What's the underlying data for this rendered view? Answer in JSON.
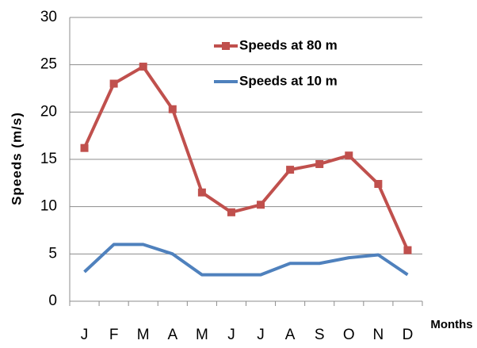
{
  "chart_data": {
    "type": "line",
    "y_label": "Speeds (m/s)",
    "x_label": "Months",
    "categories": [
      "J",
      "F",
      "M",
      "A",
      "M",
      "J",
      "J",
      "A",
      "S",
      "O",
      "N",
      "D"
    ],
    "series": [
      {
        "name": "Speeds at 80 m",
        "color": "#c0504d",
        "marker": "square",
        "values": [
          16.2,
          23,
          24.8,
          20.3,
          11.5,
          9.4,
          10.2,
          13.9,
          14.5,
          15.4,
          12.4,
          5.4
        ]
      },
      {
        "name": "Speeds at 10 m",
        "color": "#4f81bd",
        "marker": "none",
        "values": [
          3.1,
          6,
          6,
          5,
          2.8,
          2.8,
          2.8,
          4,
          4,
          4.6,
          4.9,
          2.8
        ]
      }
    ],
    "ylim": [
      0,
      30
    ],
    "yticks": [
      0,
      5,
      10,
      15,
      20,
      25,
      30
    ],
    "grid": true
  }
}
